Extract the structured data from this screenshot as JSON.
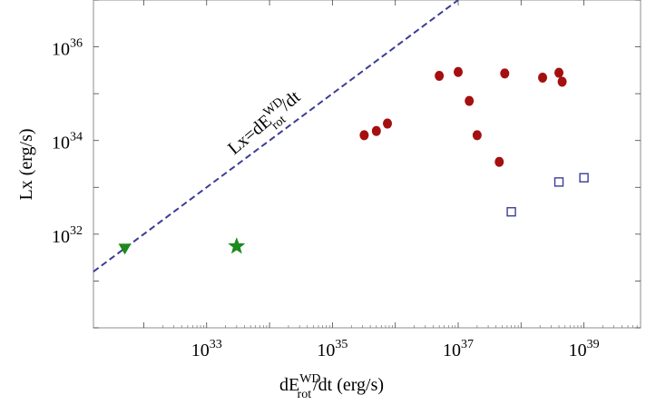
{
  "chart_data": {
    "type": "scatter",
    "title": "",
    "xlabel": {
      "base": "dE",
      "sup": "WD",
      "sub": "rot",
      "rest": "/dt (erg/s)"
    },
    "ylabel": "Lx (erg/s)",
    "x_log": true,
    "y_log": true,
    "xlim_log10": [
      31.2,
      39.9
    ],
    "ylim_log10": [
      30.0,
      37.0
    ],
    "grid": false,
    "x_ticks": [
      {
        "base": "10",
        "exp": "33",
        "log10": 33
      },
      {
        "base": "10",
        "exp": "35",
        "log10": 35
      },
      {
        "base": "10",
        "exp": "37",
        "log10": 37
      },
      {
        "base": "10",
        "exp": "39",
        "log10": 39
      }
    ],
    "y_ticks": [
      {
        "base": "10",
        "exp": "32",
        "log10": 32
      },
      {
        "base": "10",
        "exp": "34",
        "log10": 34
      },
      {
        "base": "10",
        "exp": "36",
        "log10": 36
      }
    ],
    "reference_line": {
      "label": {
        "base": "Lx=dE",
        "sup": "WD",
        "sub": "rot",
        "rest": " /dt"
      },
      "relation": "y = x",
      "color": "#3b3d96",
      "style": "dashed"
    },
    "series": [
      {
        "marker": "circle",
        "color": "#a50f0f",
        "points": [
          {
            "x": 3.2e+35,
            "y": 1.3e+34
          },
          {
            "x": 5e+35,
            "y": 1.6e+34
          },
          {
            "x": 7.5e+35,
            "y": 2.3e+34
          },
          {
            "x": 5e+36,
            "y": 2.4e+35
          },
          {
            "x": 1e+37,
            "y": 2.9e+35
          },
          {
            "x": 1.5e+37,
            "y": 7e+34
          },
          {
            "x": 2e+37,
            "y": 1.3e+34
          },
          {
            "x": 4.5e+37,
            "y": 3.5e+33
          },
          {
            "x": 5.5e+37,
            "y": 2.7e+35
          },
          {
            "x": 2.2e+38,
            "y": 2.2e+35
          },
          {
            "x": 4e+38,
            "y": 2.8e+35
          },
          {
            "x": 4.5e+38,
            "y": 1.8e+35
          }
        ]
      },
      {
        "marker": "open-square",
        "color": "#3b3d96",
        "points": [
          {
            "x": 7e+37,
            "y": 3e+32
          },
          {
            "x": 4e+38,
            "y": 1.3e+33
          },
          {
            "x": 1e+39,
            "y": 1.6e+33
          }
        ]
      },
      {
        "marker": "down-triangle",
        "color": "#1c8a1c",
        "points": [
          {
            "x": 5e+31,
            "y": 5e+31
          }
        ]
      },
      {
        "marker": "star",
        "color": "#1c8a1c",
        "points": [
          {
            "x": 3e+33,
            "y": 5.5e+31
          }
        ]
      }
    ]
  }
}
